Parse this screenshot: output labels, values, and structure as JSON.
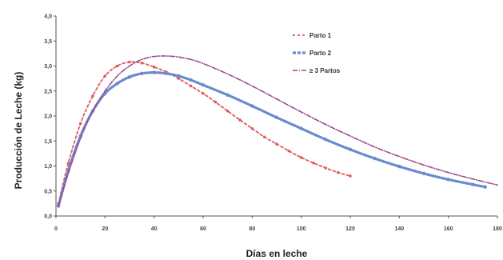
{
  "chart_data": {
    "type": "line",
    "xlabel": "Días en leche",
    "ylabel": "Producción de Leche (kg)",
    "xlim": [
      0,
      180
    ],
    "ylim": [
      0,
      4.0
    ],
    "x_ticks": [
      "0",
      "20",
      "40",
      "60",
      "80",
      "100",
      "120",
      "140",
      "160",
      "180"
    ],
    "y_ticks": [
      "0,0",
      "0,5",
      "1,0",
      "1,5",
      "2,0",
      "2,5",
      "3,0",
      "3,5",
      "4,0"
    ],
    "y_ticks_values": [
      0,
      0.5,
      1.0,
      1.5,
      2.0,
      2.5,
      3.0,
      3.5,
      4.0
    ],
    "x_ticks_values": [
      0,
      20,
      40,
      60,
      80,
      100,
      120,
      140,
      160,
      180
    ],
    "grid": false,
    "legend_position": "top-right",
    "series": [
      {
        "name": "Parto 1",
        "color": "#e05a5a",
        "style": "dashed-dotted",
        "x": [
          1,
          5,
          10,
          15,
          20,
          25,
          30,
          35,
          40,
          45,
          50,
          55,
          60,
          65,
          70,
          75,
          80,
          85,
          90,
          95,
          100,
          105,
          110,
          115,
          120
        ],
        "y": [
          0.25,
          1.05,
          1.85,
          2.4,
          2.8,
          3.0,
          3.08,
          3.06,
          2.98,
          2.88,
          2.75,
          2.6,
          2.45,
          2.28,
          2.1,
          1.92,
          1.75,
          1.58,
          1.44,
          1.3,
          1.17,
          1.06,
          0.96,
          0.87,
          0.8
        ]
      },
      {
        "name": "Parto 2",
        "color": "#6a8ad0",
        "style": "thick-dashed",
        "x": [
          1,
          5,
          10,
          15,
          20,
          25,
          30,
          35,
          40,
          45,
          50,
          55,
          60,
          70,
          80,
          90,
          100,
          110,
          120,
          130,
          140,
          150,
          160,
          170,
          175
        ],
        "y": [
          0.2,
          0.9,
          1.6,
          2.1,
          2.45,
          2.65,
          2.78,
          2.85,
          2.87,
          2.85,
          2.8,
          2.72,
          2.62,
          2.42,
          2.2,
          1.97,
          1.75,
          1.53,
          1.33,
          1.15,
          0.99,
          0.85,
          0.73,
          0.63,
          0.58
        ]
      },
      {
        "name": "≥ 3 Partos",
        "color": "#9a4a8a",
        "style": "dash-dot",
        "x": [
          1,
          5,
          10,
          15,
          20,
          25,
          30,
          35,
          40,
          45,
          50,
          55,
          60,
          70,
          80,
          90,
          100,
          110,
          120,
          130,
          140,
          150,
          160,
          170,
          180
        ],
        "y": [
          0.2,
          0.85,
          1.55,
          2.1,
          2.5,
          2.8,
          3.0,
          3.13,
          3.19,
          3.2,
          3.18,
          3.13,
          3.05,
          2.84,
          2.6,
          2.34,
          2.08,
          1.83,
          1.6,
          1.38,
          1.19,
          1.02,
          0.87,
          0.74,
          0.62
        ]
      }
    ]
  }
}
